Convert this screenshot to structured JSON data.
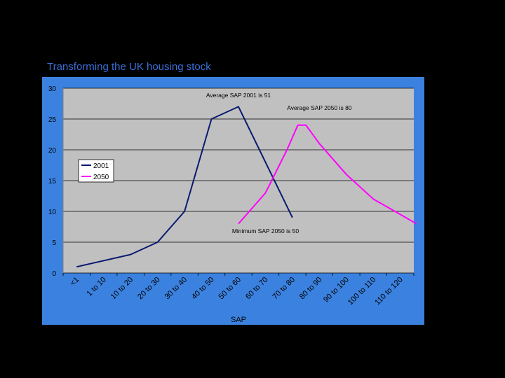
{
  "slide": {
    "title": "Transforming the UK housing stock"
  },
  "colors": {
    "background": "#000000",
    "chart_background": "#3b82e0",
    "plot_area": "#c0c0c0",
    "series_2001": "#0a1a6e",
    "series_2050": "#ff00ff"
  },
  "chart_data": {
    "type": "line",
    "title": "",
    "xlabel": "SAP",
    "ylabel": "",
    "ylim": [
      0,
      30
    ],
    "yticks": [
      0,
      5,
      10,
      15,
      20,
      25,
      30
    ],
    "grid": true,
    "legend_position": "top-left",
    "categories": [
      "<1",
      "1 to 10",
      "10 to 20",
      "20 to 30",
      "30 to 40",
      "40 to 50",
      "50 to 60",
      "60 to 70",
      "70 to 80",
      "80 to 90",
      "90 to 100",
      "100 to 110",
      "110 to 120"
    ],
    "series": [
      {
        "name": "2001",
        "x": [
          0,
          2,
          3,
          4,
          5,
          6,
          8
        ],
        "values": [
          1,
          3,
          5,
          10,
          25,
          27,
          9
        ],
        "color": "#0a1a6e"
      },
      {
        "name": "2050",
        "x": [
          6,
          7,
          7.8,
          8.2,
          8.5,
          9,
          10,
          11,
          12,
          12.6
        ],
        "values": [
          8,
          13,
          20,
          24,
          24,
          21,
          16,
          12,
          9.5,
          8
        ],
        "color": "#ff00ff"
      }
    ],
    "annotations": [
      {
        "text": "Average SAP 2001 is 51",
        "x": 6,
        "y": 28.5
      },
      {
        "text": "Average SAP 2050 is 80",
        "x": 9,
        "y": 26.5
      },
      {
        "text": "Minimum SAP 2050 is 50",
        "x": 7,
        "y": 6.5
      }
    ]
  }
}
